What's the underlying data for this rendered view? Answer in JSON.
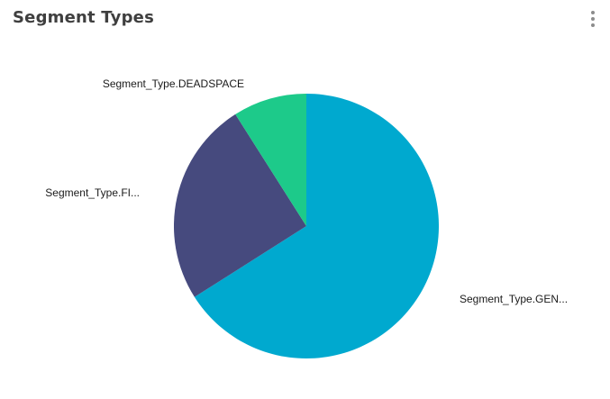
{
  "card": {
    "title": "Segment Types",
    "menu_icon": "kebab-menu-icon"
  },
  "chart_data": {
    "type": "pie",
    "labels": [
      "Segment_Type.GEN...",
      "Segment_Type.FI...",
      "Segment_Type.DEADSPACE"
    ],
    "values": [
      66,
      25,
      9
    ],
    "colors": [
      "#00a9cf",
      "#464a7e",
      "#1dca8a"
    ],
    "start_angle_deg": 0,
    "direction": "clockwise"
  }
}
